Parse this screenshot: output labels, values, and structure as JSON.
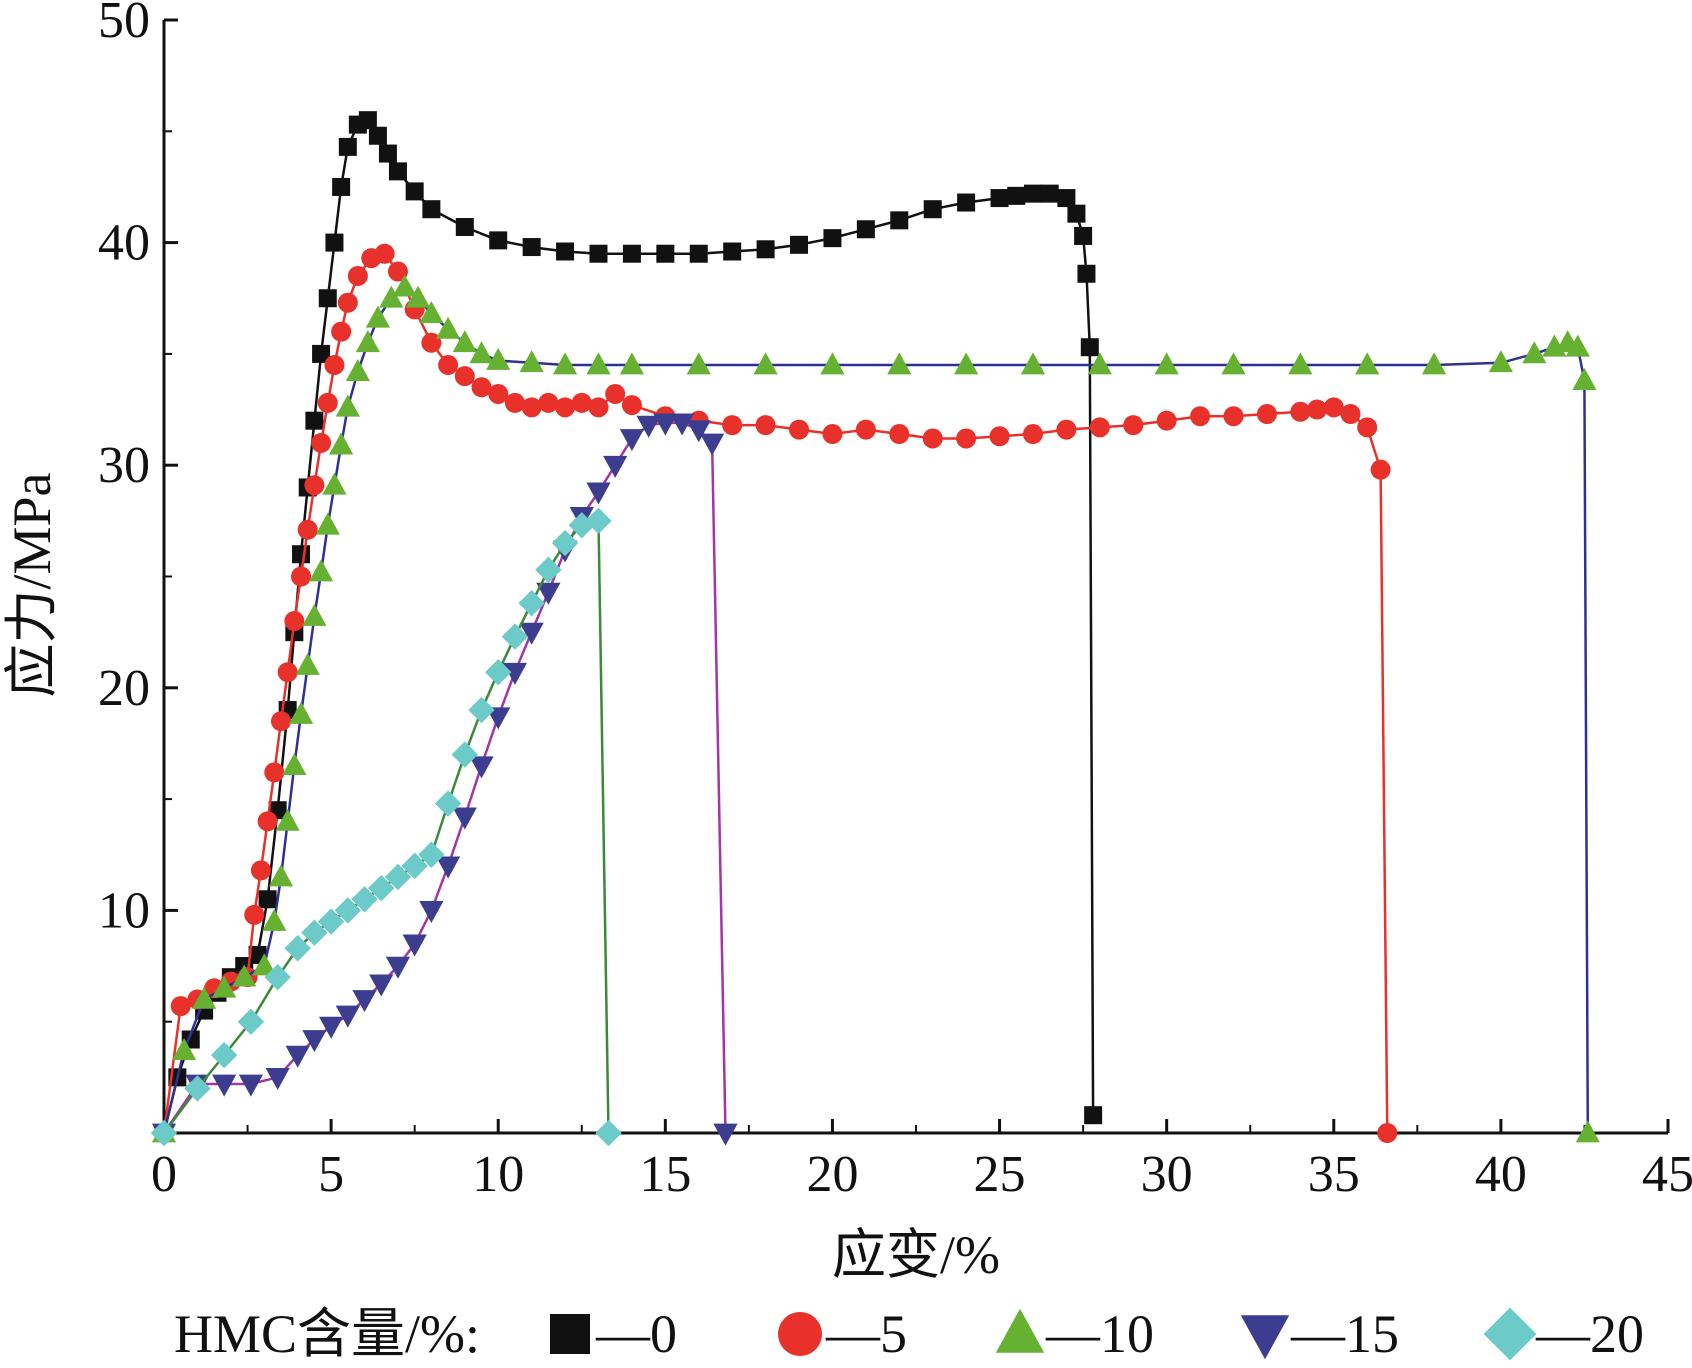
{
  "chart_data": {
    "type": "line",
    "xlabel": "应变/%",
    "ylabel": "应力/MPa",
    "xlim": [
      0,
      45
    ],
    "ylim": [
      0,
      50
    ],
    "xticks": [
      "0",
      "5",
      "10",
      "15",
      "20",
      "25",
      "30",
      "35",
      "40",
      "45"
    ],
    "yticks": [
      "10",
      "20",
      "30",
      "40",
      "50"
    ],
    "grid": false,
    "legend": {
      "title": "HMC含量/%:",
      "position": "bottom",
      "entries": [
        "—0",
        "—5",
        "—10",
        "—15",
        "—20"
      ]
    },
    "series": [
      {
        "name": "0",
        "marker": "square",
        "color": "#111111",
        "line_color": "#111111",
        "x": [
          0,
          0.4,
          0.8,
          1.2,
          1.6,
          2.0,
          2.4,
          2.8,
          3.1,
          3.4,
          3.7,
          3.9,
          4.1,
          4.3,
          4.5,
          4.7,
          4.9,
          5.1,
          5.3,
          5.5,
          5.8,
          6.1,
          6.4,
          6.7,
          7.0,
          7.5,
          8.0,
          9.0,
          10.0,
          11.0,
          12.0,
          13.0,
          14.0,
          15.0,
          16.0,
          17.0,
          18.0,
          19.0,
          20.0,
          21.0,
          22.0,
          23.0,
          24.0,
          25.0,
          25.5,
          26.0,
          26.5,
          27.0,
          27.3,
          27.5,
          27.6,
          27.7,
          27.8
        ],
        "y": [
          0,
          2.5,
          4.2,
          5.5,
          6.3,
          7.0,
          7.5,
          8.0,
          10.5,
          14.5,
          19,
          22.5,
          26,
          29,
          32,
          35,
          37.5,
          40,
          42.5,
          44.3,
          45.3,
          45.5,
          44.8,
          44,
          43.2,
          42.3,
          41.5,
          40.7,
          40.1,
          39.8,
          39.6,
          39.5,
          39.5,
          39.5,
          39.5,
          39.6,
          39.7,
          39.9,
          40.2,
          40.6,
          41.0,
          41.5,
          41.8,
          42.0,
          42.1,
          42.2,
          42.2,
          42.0,
          41.3,
          40.3,
          38.6,
          35.3,
          0.8
        ]
      },
      {
        "name": "5",
        "marker": "circle",
        "color": "#e8312a",
        "line_color": "#e8312a",
        "x": [
          0,
          0.5,
          1.0,
          1.5,
          2.0,
          2.5,
          2.7,
          2.9,
          3.1,
          3.3,
          3.5,
          3.7,
          3.9,
          4.1,
          4.3,
          4.5,
          4.7,
          4.9,
          5.1,
          5.3,
          5.5,
          5.8,
          6.2,
          6.6,
          7.0,
          7.5,
          8.0,
          8.5,
          9.0,
          9.5,
          10.0,
          10.5,
          11.0,
          11.5,
          12.0,
          12.5,
          13.0,
          13.5,
          14.0,
          15.0,
          16.0,
          17.0,
          18.0,
          19.0,
          20.0,
          21.0,
          22.0,
          23.0,
          24.0,
          25.0,
          26.0,
          27.0,
          28.0,
          29.0,
          30.0,
          31.0,
          32.0,
          33.0,
          34.0,
          34.5,
          35.0,
          35.5,
          36.0,
          36.4,
          36.6
        ],
        "y": [
          0,
          5.7,
          6.0,
          6.5,
          6.8,
          7.0,
          9.8,
          11.8,
          14.0,
          16.2,
          18.5,
          20.7,
          23.0,
          25.0,
          27.1,
          29.1,
          31.0,
          32.8,
          34.5,
          36.0,
          37.3,
          38.5,
          39.3,
          39.5,
          38.7,
          37.0,
          35.5,
          34.5,
          34.0,
          33.5,
          33.2,
          32.8,
          32.6,
          32.8,
          32.6,
          32.8,
          32.6,
          33.2,
          32.7,
          32.2,
          32.0,
          31.8,
          31.8,
          31.6,
          31.4,
          31.6,
          31.4,
          31.2,
          31.2,
          31.3,
          31.4,
          31.6,
          31.7,
          31.8,
          32.0,
          32.2,
          32.2,
          32.3,
          32.4,
          32.5,
          32.6,
          32.3,
          31.7,
          29.8,
          0
        ]
      },
      {
        "name": "10",
        "marker": "triangle-up",
        "color": "#66b032",
        "line_color": "#2e3192",
        "x": [
          0,
          0.6,
          1.2,
          1.8,
          2.4,
          3.0,
          3.3,
          3.5,
          3.7,
          3.9,
          4.1,
          4.3,
          4.5,
          4.7,
          4.9,
          5.1,
          5.3,
          5.5,
          5.8,
          6.1,
          6.4,
          6.8,
          7.2,
          7.6,
          8.0,
          8.5,
          9.0,
          9.5,
          10.0,
          11.0,
          12.0,
          13.0,
          14.0,
          16.0,
          18.0,
          20.0,
          22.0,
          24.0,
          26.0,
          28.0,
          30.0,
          32.0,
          34.0,
          36.0,
          38.0,
          40.0,
          41.0,
          41.6,
          42.0,
          42.3,
          42.5,
          42.6
        ],
        "y": [
          0,
          3.7,
          6.0,
          6.5,
          7.0,
          7.5,
          9.5,
          11.5,
          14.0,
          16.5,
          18.8,
          21.0,
          23.2,
          25.2,
          27.3,
          29.1,
          30.9,
          32.6,
          34.2,
          35.5,
          36.6,
          37.5,
          38.0,
          37.5,
          36.8,
          36.1,
          35.5,
          35.0,
          34.7,
          34.6,
          34.5,
          34.5,
          34.5,
          34.5,
          34.5,
          34.5,
          34.5,
          34.5,
          34.5,
          34.5,
          34.5,
          34.5,
          34.5,
          34.5,
          34.5,
          34.6,
          35.0,
          35.3,
          35.5,
          35.3,
          33.8,
          0
        ]
      },
      {
        "name": "15",
        "marker": "triangle-down",
        "color": "#3d3d8f",
        "line_color": "#a335a8",
        "x": [
          0,
          1.0,
          1.8,
          2.6,
          3.4,
          4.0,
          4.5,
          5.0,
          5.5,
          6.0,
          6.5,
          7.0,
          7.5,
          8.0,
          8.5,
          9.0,
          9.5,
          10.0,
          10.5,
          11.0,
          11.5,
          12.0,
          12.5,
          13.0,
          13.5,
          14.0,
          14.5,
          15.0,
          15.5,
          16.0,
          16.4,
          16.8
        ],
        "y": [
          0,
          2.2,
          2.2,
          2.2,
          2.5,
          3.5,
          4.2,
          4.8,
          5.3,
          6.0,
          6.7,
          7.5,
          8.5,
          10.0,
          12.0,
          14.2,
          16.5,
          18.7,
          20.7,
          22.5,
          24.3,
          26.2,
          27.7,
          28.8,
          30.0,
          31.2,
          31.8,
          31.9,
          31.9,
          31.6,
          31.0,
          0
        ]
      },
      {
        "name": "20",
        "marker": "diamond",
        "color": "#6ccbc8",
        "line_color": "#3a8a3a",
        "x": [
          0,
          1.0,
          1.8,
          2.6,
          3.4,
          4.0,
          4.5,
          5.0,
          5.5,
          6.0,
          6.5,
          7.0,
          7.5,
          8.0,
          8.5,
          9.0,
          9.5,
          10.0,
          10.5,
          11.0,
          11.5,
          12.0,
          12.5,
          13.0,
          13.3
        ],
        "y": [
          0,
          2.0,
          3.5,
          5.0,
          7.0,
          8.3,
          9.0,
          9.5,
          10.0,
          10.5,
          11.0,
          11.5,
          12.0,
          12.5,
          14.8,
          17.0,
          19.0,
          20.7,
          22.3,
          23.8,
          25.3,
          26.5,
          27.3,
          27.5,
          0
        ]
      }
    ]
  }
}
